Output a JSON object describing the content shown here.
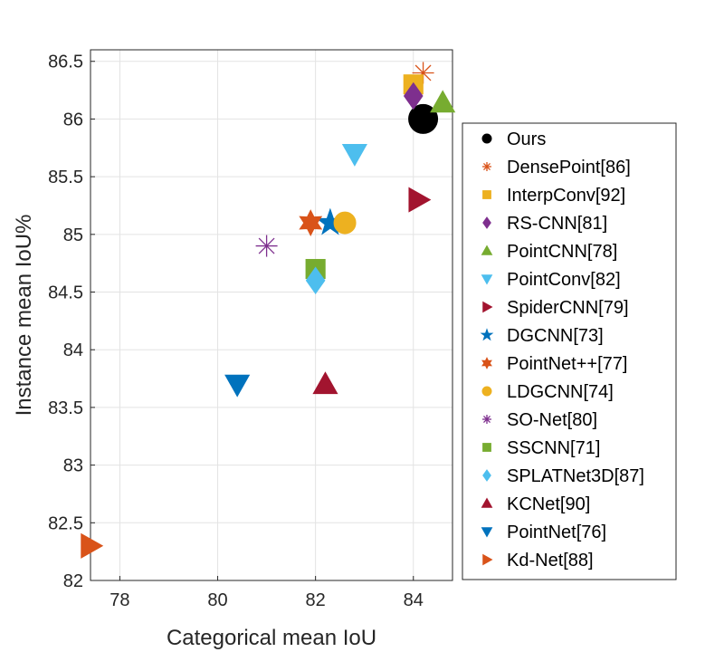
{
  "chart_data": {
    "type": "scatter",
    "title": "",
    "xlabel": "Categorical mean IoU",
    "ylabel": "Instance mean IoU%",
    "xlim": [
      77.4,
      84.8
    ],
    "ylim": [
      82,
      86.6
    ],
    "xticks": [
      78,
      80,
      82,
      84
    ],
    "yticks": [
      82,
      82.5,
      83,
      83.5,
      84,
      84.5,
      85,
      85.5,
      86,
      86.5
    ],
    "grid": true,
    "legend_position": "right",
    "series": [
      {
        "name": "Ours",
        "x": 84.2,
        "y": 86.0,
        "marker": "circle",
        "size": "large",
        "color": "#000000"
      },
      {
        "name": "DensePoint[86]",
        "x": 84.2,
        "y": 86.4,
        "marker": "asterisk",
        "size": "large",
        "color": "#D95319"
      },
      {
        "name": "InterpConv[92]",
        "x": 84.0,
        "y": 86.3,
        "marker": "square",
        "size": "large",
        "color": "#EDB120"
      },
      {
        "name": "RS-CNN[81]",
        "x": 84.0,
        "y": 86.2,
        "marker": "diamond",
        "size": "large",
        "color": "#7E2F8E"
      },
      {
        "name": "PointCNN[78]",
        "x": 84.6,
        "y": 86.14,
        "marker": "triangle-up",
        "size": "large",
        "color": "#77AC30"
      },
      {
        "name": "PointConv[82]",
        "x": 82.8,
        "y": 85.7,
        "marker": "triangle-down",
        "size": "large",
        "color": "#4DBEEE"
      },
      {
        "name": "SpiderCNN[79]",
        "x": 84.1,
        "y": 85.3,
        "marker": "triangle-right",
        "size": "large",
        "color": "#A2142F"
      },
      {
        "name": "DGCNN[73]",
        "x": 82.3,
        "y": 85.1,
        "marker": "pentagram",
        "size": "large",
        "color": "#0072BD"
      },
      {
        "name": "PointNet++[77]",
        "x": 81.9,
        "y": 85.1,
        "marker": "hexagram",
        "size": "large",
        "color": "#D95319"
      },
      {
        "name": "LDGCNN[74]",
        "x": 82.6,
        "y": 85.1,
        "marker": "circle",
        "size": "large",
        "color": "#EDB120"
      },
      {
        "name": "SO-Net[80]",
        "x": 81.0,
        "y": 84.9,
        "marker": "asterisk",
        "size": "large",
        "color": "#7E2F8E"
      },
      {
        "name": "SSCNN[71]",
        "x": 82.0,
        "y": 84.7,
        "marker": "square",
        "size": "large",
        "color": "#77AC30"
      },
      {
        "name": "SPLATNet3D[87]",
        "x": 82.0,
        "y": 84.6,
        "marker": "diamond",
        "size": "large",
        "color": "#4DBEEE"
      },
      {
        "name": "KCNet[90]",
        "x": 82.2,
        "y": 83.7,
        "marker": "triangle-up",
        "size": "large",
        "color": "#A2142F"
      },
      {
        "name": "PointNet[76]",
        "x": 80.4,
        "y": 83.7,
        "marker": "triangle-down",
        "size": "large",
        "color": "#0072BD"
      },
      {
        "name": "Kd-Net[88]",
        "x": 77.4,
        "y": 82.3,
        "marker": "triangle-right",
        "size": "large",
        "color": "#D95319"
      }
    ]
  }
}
